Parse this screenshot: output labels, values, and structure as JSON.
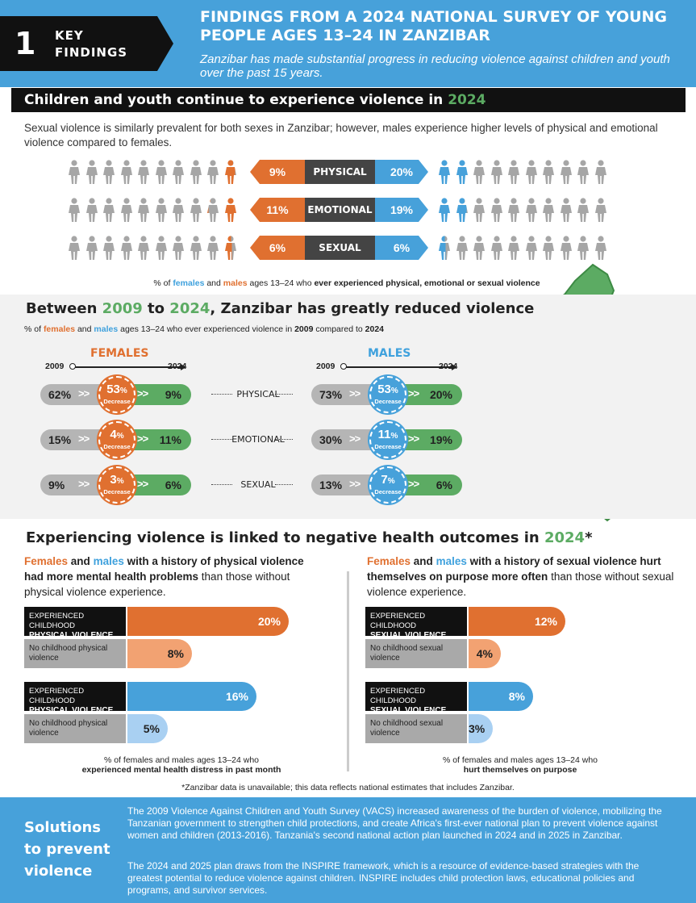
{
  "header": {
    "number": "1",
    "key": "KEY",
    "findings": "FINDINGS",
    "title": "FINDINGS FROM A 2024 NATIONAL SURVEY OF YOUNG PEOPLE AGES 13–24 IN ZANZIBAR",
    "subtitle": "Zanzibar has made substantial progress in reducing violence against children and youth over the past 15 years."
  },
  "s1": {
    "title_a": "Children and youth continue to experience violence in ",
    "title_year": "2024",
    "intro": "Sexual violence is similarly prevalent for both sexes in Zanzibar; however, males experience higher levels of physical and emotional violence compared to females.",
    "rows": [
      {
        "female": "9%",
        "label": "PHYSICAL",
        "male": "20%",
        "female_frac": 0.09,
        "male_frac": 0.2
      },
      {
        "female": "11%",
        "label": "EMOTIONAL",
        "male": "19%",
        "female_frac": 0.11,
        "male_frac": 0.19
      },
      {
        "female": "6%",
        "label": "SEXUAL",
        "male": "6%",
        "female_frac": 0.06,
        "male_frac": 0.06
      }
    ],
    "caption_a": "% of ",
    "caption_f": "females",
    "caption_and": " and ",
    "caption_m": "males",
    "caption_b": " ages 13–24 who ",
    "caption_c": "ever experienced physical, emotional or sexual violence"
  },
  "s2": {
    "title_a": "Between ",
    "y1": "2009",
    "title_b": " to ",
    "y2": "2024",
    "title_c": ", Zanzibar has greatly reduced violence",
    "sub_a": "% of ",
    "sub_f": "females",
    "sub_and": " and ",
    "sub_m": "males",
    "sub_b": " ages 13–24 who ever experienced violence in ",
    "sub_y1": "2009",
    "sub_c": " compared to ",
    "sub_y2": "2024",
    "females": "FEMALES",
    "males": "MALES",
    "from": "2009",
    "to": "2024",
    "decrease": "Decrease",
    "rows": [
      {
        "cat": "PHYSICAL",
        "f_from": "62%",
        "f_dec": "53",
        "f_to": "9%",
        "m_from": "73%",
        "m_dec": "53",
        "m_to": "20%"
      },
      {
        "cat": "EMOTIONAL",
        "f_from": "15%",
        "f_dec": "4",
        "f_to": "11%",
        "m_from": "30%",
        "m_dec": "11",
        "m_to": "19%"
      },
      {
        "cat": "SEXUAL",
        "f_from": "9%",
        "f_dec": "3",
        "f_to": "6%",
        "m_from": "13%",
        "m_dec": "7",
        "m_to": "6%"
      }
    ],
    "pct": "%"
  },
  "s3": {
    "title_a": "Experiencing violence is linked to negative health outcomes in ",
    "title_year": "2024",
    "star": "*",
    "left": {
      "f": "Females",
      "and": " and ",
      "m": "males",
      "b": " with a history of physical violence had more mental health problems",
      "c": " than those without physical violence experience.",
      "bars": [
        {
          "l1": "EXPERIENCED CHILDHOOD",
          "l2": "PHYSICAL VIOLENCE",
          "val": "20%",
          "frac": 0.2
        },
        {
          "l1": "No childhood physical",
          "l2": "violence",
          "val": "8%",
          "frac": 0.08
        },
        {
          "l1": "EXPERIENCED CHILDHOOD",
          "l2": "PHYSICAL VIOLENCE",
          "val": "16%",
          "frac": 0.16
        },
        {
          "l1": "No childhood physical",
          "l2": "violence",
          "val": "5%",
          "frac": 0.05
        }
      ],
      "cap1": "% of females and males ages 13–24 who",
      "cap2": "experienced mental health distress in past month"
    },
    "right": {
      "f": "Females",
      "and": " and ",
      "m": "males",
      "b": " with a history of sexual violence hurt themselves on purpose more often",
      "c": " than those without sexual violence experience.",
      "bars": [
        {
          "l1": "EXPERIENCED CHILDHOOD",
          "l2": "SEXUAL VIOLENCE",
          "val": "12%",
          "frac": 0.12
        },
        {
          "l1": "No childhood sexual",
          "l2": "violence",
          "val": "4%",
          "frac": 0.04
        },
        {
          "l1": "EXPERIENCED CHILDHOOD",
          "l2": "SEXUAL VIOLENCE",
          "val": "8%",
          "frac": 0.08
        },
        {
          "l1": "No childhood sexual",
          "l2": "violence",
          "val": "3%",
          "frac": 0.03
        }
      ],
      "cap1": "% of females and males ages 13–24 who",
      "cap2": "hurt themselves on purpose"
    },
    "footnote": "*Zanzibar data is unavailable; this data reflects national estimates that includes Zanzibar."
  },
  "solutions": {
    "title": "Solutions to prevent violence",
    "p1": "The 2009 Violence Against Children and Youth Survey (VACS) increased awareness of the burden of violence, mobilizing the Tanzanian government to strengthen child protections, and create Africa's first-ever national plan to prevent violence against women and children (2013-2016). Tanzania's second national action plan launched in 2024 and in 2025 in Zanzibar.",
    "p2": "The 2024 and 2025 plan draws from the INSPIRE framework, which is a resource of evidence-based strategies with the greatest potential to reduce violence against children. INSPIRE includes child protection laws, educational policies and programs, and survivor services."
  },
  "colors": {
    "female": "#e07030",
    "male": "#47a1da",
    "green": "#5cab63",
    "dark": "#111111"
  }
}
